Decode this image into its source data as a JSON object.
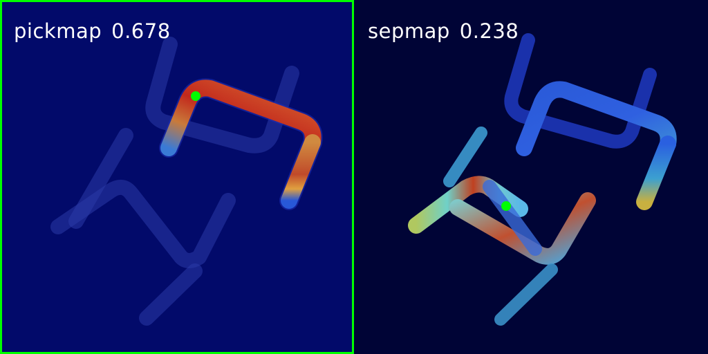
{
  "panels": [
    {
      "id": "pickmap",
      "name": "pickmap",
      "score": "0.678",
      "selected": true,
      "background_color": "#020a6a",
      "frame_color": "#00ff00",
      "marker_color": "#00ff00"
    },
    {
      "id": "sepmap",
      "name": "sepmap",
      "score": "0.238",
      "selected": false,
      "background_color": "#000436",
      "marker_color": "#00ff00"
    }
  ],
  "colors": {
    "label_text": "#ffffff",
    "heat_low": "#1f2fd0",
    "heat_mid": "#5fd0c0",
    "heat_high": "#c2281c"
  }
}
